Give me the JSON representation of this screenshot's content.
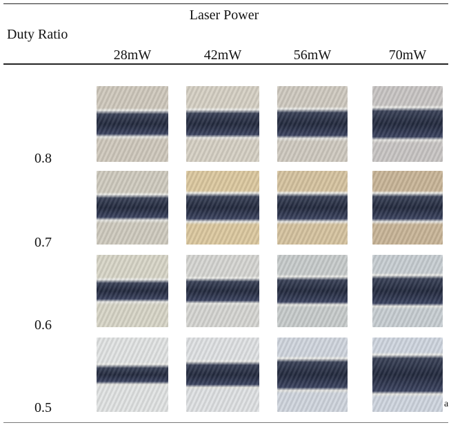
{
  "table": {
    "column_group_header": "Laser Power",
    "row_header": "Duty Ratio",
    "columns": [
      "28mW",
      "42mW",
      "56mW",
      "70mW"
    ],
    "rows": [
      "0.8",
      "0.7",
      "0.6",
      "0.5"
    ],
    "note": "a"
  }
}
